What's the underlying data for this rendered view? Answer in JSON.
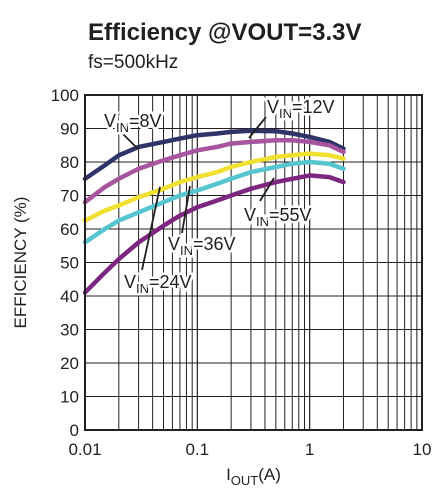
{
  "chart_data": {
    "type": "line",
    "title": "Efficiency @VOUT=3.3V",
    "subtitle": "fs=500kHz",
    "xlabel": {
      "main": "I",
      "sub": "OUT",
      "tail": "(A)"
    },
    "ylabel": "EFFICIENCY (%)",
    "x_scale": "log",
    "xlim": [
      0.01,
      10
    ],
    "ylim": [
      0,
      100
    ],
    "grid": true,
    "x_ticks": [
      {
        "value": 0.01,
        "label": "0.01"
      },
      {
        "value": 0.1,
        "label": "0.1"
      },
      {
        "value": 1,
        "label": "1"
      },
      {
        "value": 10,
        "label": "10"
      }
    ],
    "y_ticks": [
      {
        "value": 0,
        "label": "0"
      },
      {
        "value": 10,
        "label": "10"
      },
      {
        "value": 20,
        "label": "20"
      },
      {
        "value": 30,
        "label": "30"
      },
      {
        "value": 40,
        "label": "40"
      },
      {
        "value": 50,
        "label": "50"
      },
      {
        "value": 60,
        "label": "60"
      },
      {
        "value": 70,
        "label": "70"
      },
      {
        "value": 80,
        "label": "80"
      },
      {
        "value": 90,
        "label": "90"
      },
      {
        "value": 100,
        "label": "100"
      }
    ],
    "series": [
      {
        "name": "VIN=8V",
        "color": "#2e3468",
        "x": [
          0.01,
          0.015,
          0.02,
          0.03,
          0.05,
          0.07,
          0.1,
          0.15,
          0.2,
          0.3,
          0.5,
          0.7,
          1.0,
          1.5,
          2.0
        ],
        "y": [
          75,
          79,
          82,
          84.5,
          86,
          87,
          88,
          88.5,
          89,
          89.3,
          89.2,
          88.5,
          87.5,
          86,
          84
        ]
      },
      {
        "name": "VIN=12V",
        "color": "#a8559f",
        "x": [
          0.01,
          0.015,
          0.02,
          0.03,
          0.05,
          0.07,
          0.1,
          0.15,
          0.2,
          0.3,
          0.5,
          0.7,
          1.0,
          1.5,
          2.0
        ],
        "y": [
          68,
          72.5,
          75,
          78,
          80.5,
          82,
          83.5,
          84.5,
          85.5,
          86,
          86.5,
          86.5,
          86,
          85,
          83
        ]
      },
      {
        "name": "VIN=24V",
        "color": "#f0e130",
        "x": [
          0.01,
          0.015,
          0.02,
          0.03,
          0.05,
          0.07,
          0.1,
          0.15,
          0.2,
          0.3,
          0.5,
          0.7,
          1.0,
          1.5,
          2.0
        ],
        "y": [
          62.5,
          65.5,
          67,
          69.5,
          72,
          74,
          75.5,
          77,
          78.5,
          80,
          81.5,
          82,
          82.5,
          82,
          81
        ]
      },
      {
        "name": "VIN=36V",
        "color": "#56c5d0",
        "x": [
          0.01,
          0.015,
          0.02,
          0.03,
          0.05,
          0.07,
          0.1,
          0.15,
          0.2,
          0.3,
          0.5,
          0.7,
          1.0,
          1.5,
          2.0
        ],
        "y": [
          56,
          60,
          62.5,
          65,
          68,
          70,
          71.5,
          73.5,
          75,
          77,
          78.5,
          79.5,
          80,
          79.5,
          78
        ]
      },
      {
        "name": "VIN=55V",
        "color": "#7d2680",
        "x": [
          0.01,
          0.015,
          0.02,
          0.03,
          0.05,
          0.07,
          0.1,
          0.15,
          0.2,
          0.3,
          0.5,
          0.7,
          1.0,
          1.5,
          2.0
        ],
        "y": [
          41,
          47,
          51,
          56,
          61,
          64,
          66.5,
          68.5,
          70,
          72,
          74,
          75,
          76,
          75.5,
          74
        ]
      }
    ],
    "annotations": [
      {
        "main": "V",
        "sub": "IN",
        "tail": "=8V"
      },
      {
        "main": "V",
        "sub": "IN",
        "tail": "=12V"
      },
      {
        "main": "V",
        "sub": "IN",
        "tail": "=55V"
      },
      {
        "main": "V",
        "sub": "IN",
        "tail": "=36V"
      },
      {
        "main": "V",
        "sub": "IN",
        "tail": "=24V"
      }
    ]
  }
}
